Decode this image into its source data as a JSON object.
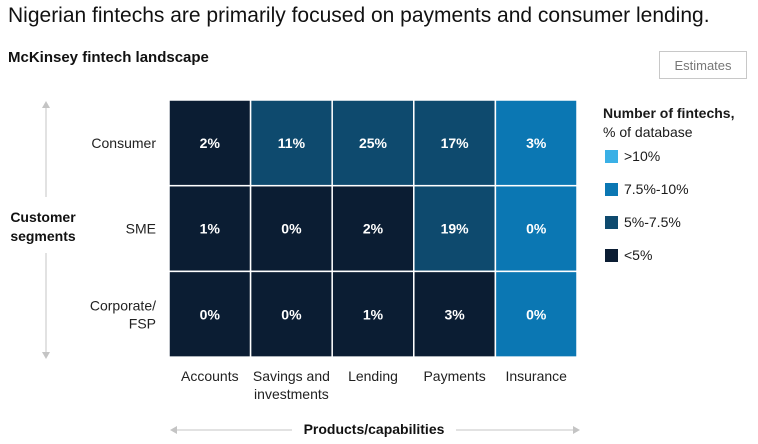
{
  "headline": "Nigerian fintechs are primarily focused on payments and consumer lending.",
  "subhead": "McKinsey fintech landscape",
  "estimates_button": "Estimates",
  "legend": {
    "title": "Number of fintechs,",
    "subtitle": "% of database",
    "items": [
      {
        "label": ">10%",
        "color": "#3ab0e6"
      },
      {
        "label": "7.5%-10%",
        "color": "#0b77b3"
      },
      {
        "label": "5%-7.5%",
        "color": "#0e4a6e"
      },
      {
        "label": "<5%",
        "color": "#0b1d33"
      }
    ]
  },
  "chart_data": {
    "type": "heatmap",
    "title": "McKinsey fintech landscape",
    "xlabel": "Products/capabilities",
    "ylabel": "Customer segments",
    "x_categories": [
      "Accounts",
      "Savings and investments",
      "Lending",
      "Payments",
      "Insurance"
    ],
    "y_categories": [
      "Consumer",
      "SME",
      "Corporate/ FSP"
    ],
    "values": [
      [
        2,
        11,
        25,
        17,
        3
      ],
      [
        1,
        0,
        2,
        19,
        0
      ],
      [
        0,
        0,
        1,
        3,
        0
      ]
    ],
    "value_labels": [
      [
        "2%",
        "11%",
        "25%",
        "17%",
        "3%"
      ],
      [
        "1%",
        "0%",
        "2%",
        "19%",
        "0%"
      ],
      [
        "0%",
        "0%",
        "1%",
        "3%",
        "0%"
      ]
    ],
    "cell_colors": [
      [
        "#0b1d33",
        "#0e4a6e",
        "#0e4a6e",
        "#0e4a6e",
        "#0b77b3"
      ],
      [
        "#0b1d33",
        "#0b1d33",
        "#0b1d33",
        "#0e4a6e",
        "#0b77b3"
      ],
      [
        "#0b1d33",
        "#0b1d33",
        "#0b1d33",
        "#0b1d33",
        "#0b77b3"
      ]
    ]
  }
}
